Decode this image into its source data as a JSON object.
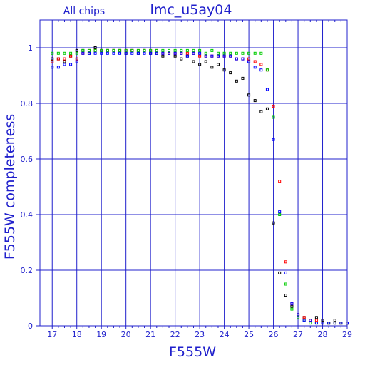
{
  "chart_data": {
    "type": "scatter",
    "title": "lmc_u5ay04",
    "subtitle": "All chips",
    "xlabel": "F555W",
    "ylabel": "F555W completeness",
    "xlim": [
      16.5,
      29
    ],
    "ylim": [
      0,
      1.1
    ],
    "x_ticks": [
      17,
      18,
      19,
      20,
      21,
      22,
      23,
      24,
      25,
      26,
      27,
      28,
      29
    ],
    "y_ticks": [
      0,
      0.2,
      0.4,
      0.6,
      0.8,
      1
    ],
    "y_tick_labels": [
      "0",
      "0.2",
      "0.4",
      "0.6",
      "0.8",
      "1"
    ],
    "grid": true,
    "colors": {
      "axes": "#2020cc",
      "text": "#2020cc"
    },
    "x": [
      17.0,
      17.25,
      17.5,
      17.75,
      18.0,
      18.25,
      18.5,
      18.75,
      19.0,
      19.25,
      19.5,
      19.75,
      20.0,
      20.25,
      20.5,
      20.75,
      21.0,
      21.25,
      21.5,
      21.75,
      22.0,
      22.25,
      22.5,
      22.75,
      23.0,
      23.25,
      23.5,
      23.75,
      24.0,
      24.25,
      24.5,
      24.75,
      25.0,
      25.25,
      25.5,
      25.75,
      26.0,
      26.25,
      26.5,
      26.75,
      27.0,
      27.25,
      27.5,
      27.75,
      28.0,
      28.25,
      28.5,
      28.75,
      29.0
    ],
    "series": [
      {
        "color": "#000000",
        "values": [
          0.96,
          0.96,
          0.95,
          0.97,
          0.99,
          0.99,
          0.98,
          1.0,
          0.99,
          0.99,
          0.99,
          0.99,
          0.98,
          0.99,
          0.98,
          0.99,
          0.98,
          0.98,
          0.97,
          0.98,
          0.97,
          0.96,
          0.97,
          0.95,
          0.94,
          0.95,
          0.93,
          0.94,
          0.92,
          0.91,
          0.88,
          0.89,
          0.83,
          0.81,
          0.77,
          0.78,
          0.37,
          0.19,
          0.11,
          0.07,
          0.04,
          0.03,
          0.02,
          0.03,
          0.02,
          0.01,
          0.02,
          0.01,
          0.01
        ]
      },
      {
        "color": "#ff0000",
        "values": [
          0.95,
          0.96,
          0.96,
          0.97,
          0.96,
          0.98,
          0.99,
          0.99,
          0.99,
          0.99,
          0.99,
          0.99,
          0.99,
          0.99,
          0.99,
          0.99,
          0.99,
          0.99,
          0.98,
          0.98,
          0.98,
          0.98,
          0.98,
          0.98,
          0.97,
          0.97,
          0.97,
          0.97,
          0.97,
          0.97,
          0.96,
          0.96,
          0.96,
          0.95,
          0.94,
          0.92,
          0.79,
          0.52,
          0.23,
          0.08,
          0.04,
          0.03,
          0.02,
          0.02,
          0.01,
          0.01,
          0.01,
          0.01,
          0.01
        ]
      },
      {
        "color": "#00cc00",
        "values": [
          0.98,
          0.98,
          0.98,
          0.98,
          0.98,
          0.99,
          0.99,
          0.99,
          0.99,
          0.99,
          0.99,
          0.99,
          0.99,
          0.99,
          0.99,
          0.99,
          0.99,
          0.99,
          0.99,
          0.99,
          0.99,
          0.99,
          0.99,
          0.99,
          0.99,
          0.98,
          0.99,
          0.98,
          0.98,
          0.98,
          0.98,
          0.98,
          0.98,
          0.98,
          0.98,
          0.92,
          0.75,
          0.4,
          0.15,
          0.06,
          0.03,
          0.02,
          0.01,
          0.01,
          0.01,
          0.01,
          0.01,
          0.01,
          0.01
        ]
      },
      {
        "color": "#0000ff",
        "values": [
          0.93,
          0.93,
          0.94,
          0.94,
          0.95,
          0.98,
          0.98,
          0.98,
          0.98,
          0.98,
          0.98,
          0.98,
          0.98,
          0.98,
          0.98,
          0.98,
          0.98,
          0.98,
          0.98,
          0.98,
          0.98,
          0.98,
          0.97,
          0.98,
          0.98,
          0.97,
          0.97,
          0.97,
          0.97,
          0.97,
          0.96,
          0.96,
          0.95,
          0.93,
          0.92,
          0.85,
          0.67,
          0.41,
          0.19,
          0.08,
          0.04,
          0.02,
          0.02,
          0.01,
          0.01,
          0.01,
          0.01,
          0.01,
          0.01
        ]
      }
    ]
  }
}
